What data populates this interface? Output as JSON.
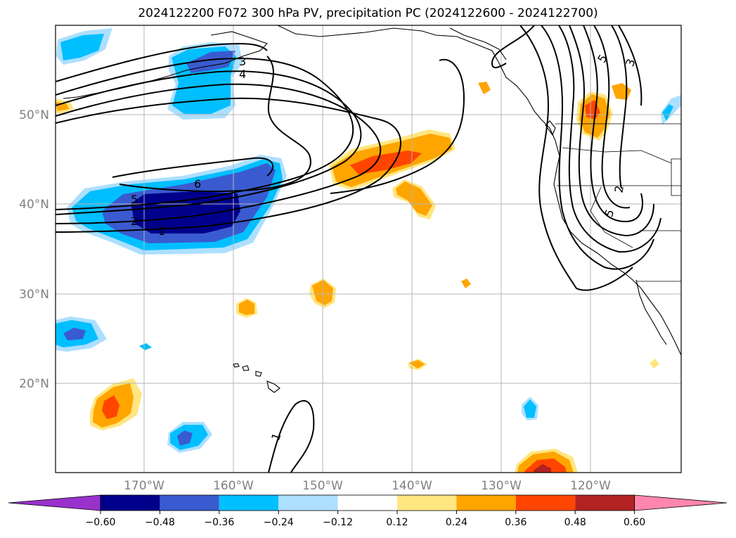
{
  "title": "2024122200 F072 300 hPa PV, precipitation PC (2024122600 - 2024122700)",
  "map": {
    "lat_labels": [
      "50°N",
      "40°N",
      "30°N",
      "20°N"
    ],
    "lon_labels": [
      "170°W",
      "160°W",
      "150°W",
      "140°W",
      "130°W",
      "120°W"
    ],
    "contour_labels": [
      "3",
      "4",
      "6",
      "5",
      "2",
      "1",
      "1",
      "5",
      "3",
      "5",
      "2"
    ]
  },
  "colorbar": {
    "ticks": [
      "−0.60",
      "−0.48",
      "−0.36",
      "−0.24",
      "−0.12",
      "0.12",
      "0.24",
      "0.36",
      "0.48",
      "0.60"
    ],
    "colors": [
      "#9932CC",
      "#00008B",
      "#3A5BCF",
      "#00BFFF",
      "#ADDFFF",
      "#FFFFFF",
      "#FFE680",
      "#FFA500",
      "#FF4500",
      "#B22222",
      "#FF86AD"
    ]
  }
}
